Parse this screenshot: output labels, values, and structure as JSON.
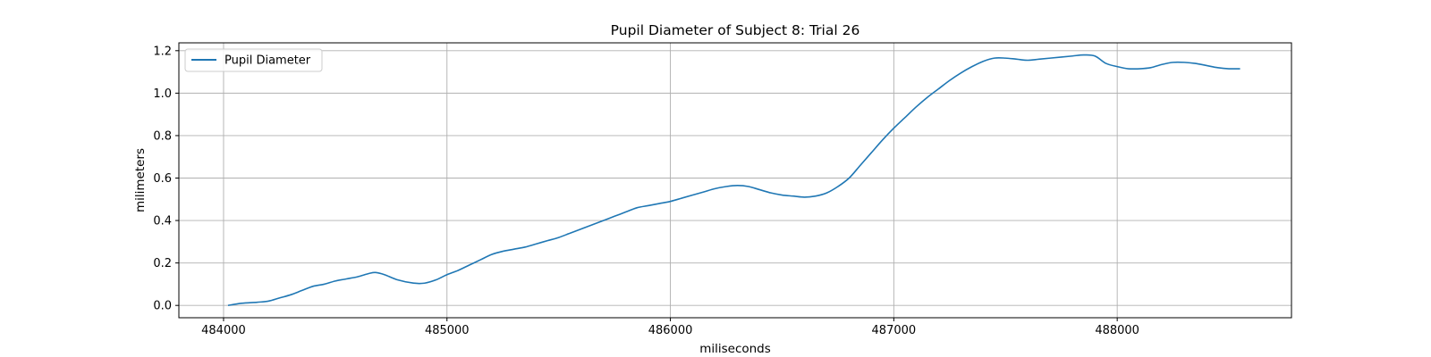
{
  "chart_data": {
    "type": "line",
    "title": "Pupil Diameter of Subject 8: Trial 26",
    "xlabel": "miliseconds",
    "ylabel": "milimeters",
    "xlim": [
      483800,
      488780
    ],
    "ylim": [
      -0.058,
      1.237
    ],
    "xticks": [
      484000,
      485000,
      486000,
      487000,
      488000
    ],
    "xtick_labels": [
      "484000",
      "485000",
      "486000",
      "487000",
      "488000"
    ],
    "yticks": [
      0.0,
      0.2,
      0.4,
      0.6,
      0.8,
      1.0,
      1.2
    ],
    "ytick_labels": [
      "0.0",
      "0.2",
      "0.4",
      "0.6",
      "0.8",
      "1.0",
      "1.2"
    ],
    "grid": true,
    "legend_position": "upper-left",
    "series": [
      {
        "name": "Pupil Diameter",
        "color": "#1f77b4",
        "x": [
          484020,
          484080,
          484150,
          484200,
          484250,
          484300,
          484350,
          484400,
          484450,
          484500,
          484550,
          484600,
          484650,
          484680,
          484720,
          484780,
          484850,
          484900,
          484950,
          485000,
          485050,
          485100,
          485150,
          485200,
          485250,
          485300,
          485350,
          485400,
          485450,
          485500,
          485550,
          485600,
          485650,
          485700,
          485750,
          485800,
          485850,
          485900,
          485950,
          486000,
          486050,
          486100,
          486150,
          486200,
          486250,
          486300,
          486350,
          486400,
          486450,
          486500,
          486550,
          486600,
          486650,
          486700,
          486750,
          486800,
          486850,
          486900,
          486950,
          487000,
          487050,
          487100,
          487150,
          487200,
          487250,
          487300,
          487350,
          487400,
          487450,
          487500,
          487550,
          487600,
          487650,
          487700,
          487750,
          487800,
          487850,
          487900,
          487950,
          488000,
          488050,
          488100,
          488150,
          488200,
          488250,
          488300,
          488350,
          488400,
          488450,
          488500,
          488550
        ],
        "values": [
          0.0,
          0.01,
          0.015,
          0.02,
          0.035,
          0.05,
          0.07,
          0.09,
          0.1,
          0.115,
          0.125,
          0.135,
          0.15,
          0.155,
          0.145,
          0.12,
          0.105,
          0.105,
          0.12,
          0.145,
          0.165,
          0.19,
          0.215,
          0.24,
          0.255,
          0.265,
          0.275,
          0.29,
          0.305,
          0.32,
          0.34,
          0.36,
          0.38,
          0.4,
          0.42,
          0.44,
          0.46,
          0.47,
          0.48,
          0.49,
          0.505,
          0.52,
          0.535,
          0.55,
          0.56,
          0.565,
          0.56,
          0.545,
          0.53,
          0.52,
          0.515,
          0.51,
          0.515,
          0.53,
          0.56,
          0.6,
          0.66,
          0.72,
          0.78,
          0.835,
          0.885,
          0.935,
          0.98,
          1.02,
          1.06,
          1.095,
          1.125,
          1.15,
          1.165,
          1.165,
          1.16,
          1.155,
          1.16,
          1.165,
          1.17,
          1.175,
          1.18,
          1.175,
          1.14,
          1.125,
          1.115,
          1.115,
          1.12,
          1.135,
          1.145,
          1.145,
          1.14,
          1.13,
          1.12,
          1.115,
          1.115
        ]
      }
    ]
  }
}
